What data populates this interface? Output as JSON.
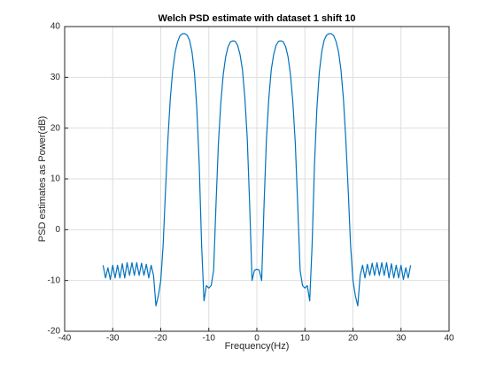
{
  "chart_data": {
    "type": "line",
    "title": "Welch PSD estimate with dataset 1 shift 10",
    "x_label": "Frequency(Hz)",
    "y_label": "PSD estimates as Power(dB)",
    "color": "#0072bd",
    "grid": true,
    "xlim": [
      -40,
      40
    ],
    "xticks": [
      -40,
      -30,
      -20,
      -10,
      0,
      10,
      20,
      30,
      40
    ],
    "ylim": [
      -20,
      40
    ],
    "yticks": [
      -20,
      -10,
      0,
      10,
      20,
      30,
      40
    ],
    "x": [
      -32,
      -31.5,
      -31,
      -30.5,
      -30,
      -29.5,
      -29,
      -28.5,
      -28,
      -27.5,
      -27,
      -26.5,
      -26,
      -25.5,
      -25,
      -24.5,
      -24,
      -23.5,
      -23,
      -22.5,
      -22,
      -21.5,
      -21,
      -20.5,
      -20,
      -19.5,
      -19,
      -18.5,
      -18,
      -17.5,
      -17,
      -16.5,
      -16,
      -15.5,
      -15,
      -14.5,
      -14,
      -13.5,
      -13,
      -12.5,
      -12,
      -11.5,
      -11,
      -10.5,
      -10,
      -9.5,
      -9,
      -8.5,
      -8,
      -7.5,
      -7,
      -6.5,
      -6,
      -5.5,
      -5,
      -4.5,
      -4,
      -3.5,
      -3,
      -2.5,
      -2,
      -1.5,
      -1,
      -0.5,
      0,
      0.5,
      1,
      1.5,
      2,
      2.5,
      3,
      3.5,
      4,
      4.5,
      5,
      5.5,
      6,
      6.5,
      7,
      7.5,
      8,
      8.5,
      9,
      9.5,
      10,
      10.5,
      11,
      11.5,
      12,
      12.5,
      13,
      13.5,
      14,
      14.5,
      15,
      15.5,
      16,
      16.5,
      17,
      17.5,
      18,
      18.5,
      19,
      19.5,
      20,
      20.5,
      21,
      21.5,
      22,
      22.5,
      23,
      23.5,
      24,
      24.5,
      25,
      25.5,
      26,
      26.5,
      27,
      27.5,
      28,
      28.5,
      29,
      29.5,
      30,
      30.5,
      31,
      31.5,
      32
    ],
    "values": [
      -7,
      -9.5,
      -7.5,
      -9.8,
      -7,
      -9.5,
      -7,
      -9.5,
      -6.7,
      -9.5,
      -6.5,
      -9,
      -6.5,
      -9,
      -6.5,
      -9,
      -6.6,
      -9,
      -6.8,
      -9.5,
      -7,
      -9,
      -15,
      -13,
      -10,
      -3,
      8,
      18,
      26,
      31.5,
      35,
      37,
      38.2,
      38.6,
      38.6,
      38.3,
      37.3,
      35,
      31,
      24,
      13,
      -3,
      -14,
      -11,
      -11.5,
      -11,
      -8,
      5,
      17,
      25,
      30.5,
      34,
      36,
      37,
      37.2,
      37.1,
      36.3,
      34.5,
      31.5,
      26,
      18,
      5,
      -10,
      -8,
      -7.8,
      -8,
      -10,
      5,
      18,
      26,
      31.5,
      34.5,
      36.3,
      37.1,
      37.2,
      37,
      36,
      34,
      30.5,
      25,
      17,
      5,
      -8,
      -11,
      -11.5,
      -11,
      -14,
      -3,
      13,
      24,
      31,
      35,
      37.3,
      38.3,
      38.6,
      38.6,
      38.2,
      37,
      35,
      31.5,
      26,
      18,
      8,
      -3,
      -10,
      -13,
      -15,
      -9,
      -7,
      -9.5,
      -6.8,
      -9,
      -6.6,
      -9,
      -6.5,
      -9,
      -6.5,
      -9,
      -6.5,
      -9.5,
      -6.7,
      -9.5,
      -7,
      -9.5,
      -7,
      -9.8,
      -7.5,
      -9.5,
      -7
    ]
  }
}
